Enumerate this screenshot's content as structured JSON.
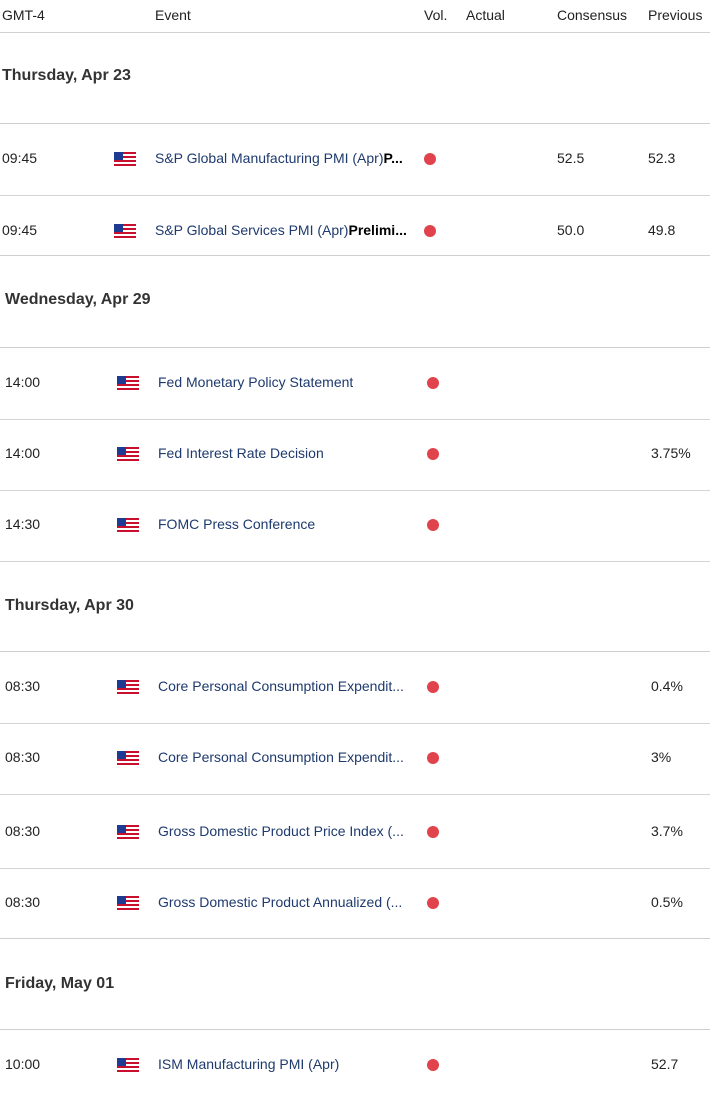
{
  "header": {
    "tz": "GMT-4",
    "event": "Event",
    "vol": "Vol.",
    "actual": "Actual",
    "consensus": "Consensus",
    "previous": "Previous"
  },
  "groups": [
    {
      "day": "Thursday, Apr 23",
      "rows": [
        {
          "time": "09:45",
          "event": "S&P Global Manufacturing PMI (Apr)",
          "event_bold": "P",
          "suffix": "...",
          "consensus": "52.5",
          "previous": "52.3"
        },
        {
          "time": "09:45",
          "event": "S&P Global Services PMI (Apr)",
          "event_bold": "Prelimi",
          "suffix": "...",
          "consensus": "50.0",
          "previous": "49.8"
        }
      ]
    },
    {
      "day": "Wednesday, Apr 29",
      "rows": [
        {
          "time": "14:00",
          "event": "Fed Monetary Policy Statement",
          "consensus": "",
          "previous": ""
        },
        {
          "time": "14:00",
          "event": "Fed Interest Rate Decision",
          "consensus": "",
          "previous": "3.75%"
        },
        {
          "time": "14:30",
          "event": "FOMC Press Conference",
          "consensus": "",
          "previous": ""
        }
      ]
    },
    {
      "day": "Thursday, Apr 30",
      "rows": [
        {
          "time": "08:30",
          "event": "Core Personal Consumption Expendit...",
          "consensus": "",
          "previous": "0.4%"
        },
        {
          "time": "08:30",
          "event": "Core Personal Consumption Expendit...",
          "consensus": "",
          "previous": "3%"
        },
        {
          "time": "08:30",
          "event": "Gross Domestic Product Price Index (...",
          "consensus": "",
          "previous": "3.7%"
        },
        {
          "time": "08:30",
          "event": "Gross Domestic Product Annualized (...",
          "consensus": "",
          "previous": "0.5%"
        }
      ]
    },
    {
      "day": "Friday, May 01",
      "rows": [
        {
          "time": "10:00",
          "event": "ISM Manufacturing PMI (Apr)",
          "consensus": "",
          "previous": "52.7"
        }
      ]
    }
  ],
  "colors": {
    "dot": "#e0434c",
    "event_text": "#1e3a6e"
  },
  "icons": {
    "flag": "us-flag-icon",
    "volatility": "high-volatility-dot"
  }
}
